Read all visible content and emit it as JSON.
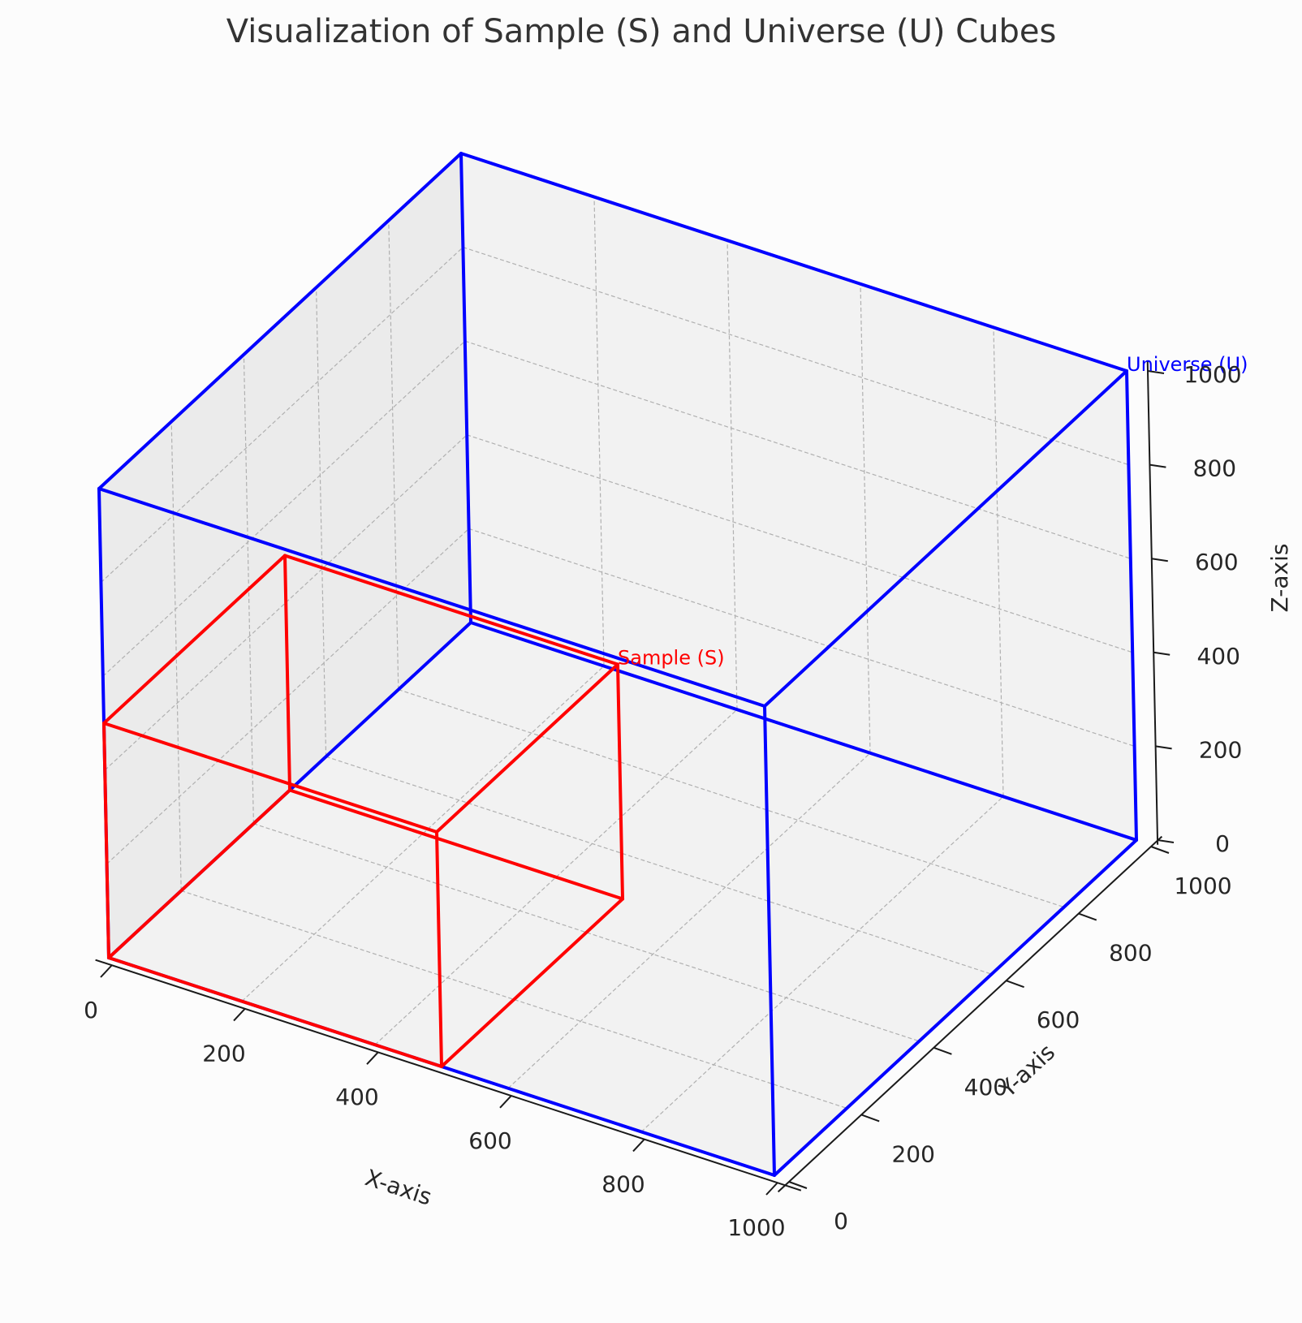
{
  "chart_data": {
    "type": "3d-wireframe",
    "title": "Visualization of Sample (S) and Universe (U) Cubes",
    "xlabel": "X-axis",
    "ylabel": "Y-axis",
    "zlabel": "Z-axis",
    "xlim": [
      0,
      1000
    ],
    "ylim": [
      0,
      1000
    ],
    "zlim": [
      0,
      1000
    ],
    "x_ticks": [
      "0",
      "200",
      "400",
      "600",
      "800",
      "1000"
    ],
    "y_ticks": [
      "0",
      "200",
      "400",
      "600",
      "800",
      "1000"
    ],
    "z_ticks": [
      "0",
      "200",
      "400",
      "600",
      "800",
      "1000"
    ],
    "grid": true,
    "series": [
      {
        "name": "Universe (U)",
        "color": "#0000ff",
        "min": [
          0,
          0,
          0
        ],
        "max": [
          1000,
          1000,
          1000
        ],
        "label_at": [
          1000,
          1000,
          1000
        ]
      },
      {
        "name": "Sample (S)",
        "color": "#ff0000",
        "min": [
          0,
          0,
          0
        ],
        "max": [
          500,
          500,
          500
        ],
        "label_at": [
          500,
          500,
          500
        ]
      }
    ]
  }
}
